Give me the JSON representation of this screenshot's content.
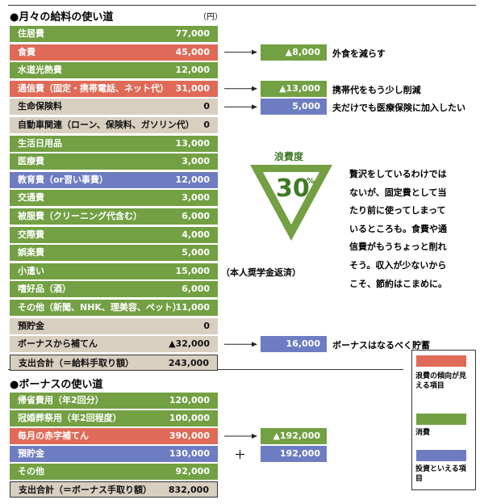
{
  "salary": {
    "title": "●月々の給料の使い道",
    "unit": "（円）",
    "rows": [
      {
        "label": "住居費",
        "amount": "77,000",
        "color": "#73a043"
      },
      {
        "label": "食費",
        "amount": "45,000",
        "color": "#df6a57",
        "change": "▲8,000",
        "change_color": "#73a043",
        "note": "外食を減らす"
      },
      {
        "label": "水道光熱費",
        "amount": "12,000",
        "color": "#73a043"
      },
      {
        "label": "通信費（固定・携帯電話、ネット代）",
        "amount": "31,000",
        "color": "#df6a57",
        "change": "▲13,000",
        "change_color": "#73a043",
        "note": "携帯代をもう少し削減"
      },
      {
        "label": "生命保険料",
        "amount": "0",
        "color": "#d8cfc0",
        "change": "5,000",
        "change_color": "#6e7cc2",
        "note": "夫だけでも医療保険に加入したい"
      },
      {
        "label": "自動車関連（ローン、保険料、ガソリン代）",
        "amount": "0",
        "color": "#d8cfc0"
      },
      {
        "label": "生活日用品",
        "amount": "13,000",
        "color": "#73a043"
      },
      {
        "label": "医療費",
        "amount": "3,000",
        "color": "#73a043"
      },
      {
        "label": "教育費（or習い事費）",
        "amount": "12,000",
        "color": "#6e7cc2"
      },
      {
        "label": "交通費",
        "amount": "3,000",
        "color": "#73a043"
      },
      {
        "label": "被服費（クリーニング代含む）",
        "amount": "6,000",
        "color": "#73a043"
      },
      {
        "label": "交際費",
        "amount": "4,000",
        "color": "#73a043"
      },
      {
        "label": "娯楽費",
        "amount": "5,000",
        "color": "#73a043"
      },
      {
        "label": "小遣い",
        "amount": "15,000",
        "color": "#73a043",
        "aside": "（本人奨学金返済）"
      },
      {
        "label": "嗜好品（酒）",
        "amount": "6,000",
        "color": "#73a043"
      },
      {
        "label": "その他（新聞、NHK、理美容、ペット）",
        "amount": "11,000",
        "color": "#73a043"
      },
      {
        "label": "預貯金",
        "amount": "0",
        "color": "#d8cfc0"
      },
      {
        "label": "ボーナスから補てん",
        "amount": "▲32,000",
        "color": "#d8cfc0",
        "change": "16,000",
        "change_color": "#6e7cc2",
        "note": "ボーナスはなるべく貯蓄"
      },
      {
        "label": "支出合計（＝給料手取り額）",
        "amount": "243,000",
        "color": "#d8cfc0",
        "total": true
      }
    ]
  },
  "bonus": {
    "title": "●ボーナスの使い道",
    "rows": [
      {
        "label": "帰省費用（年2回分）",
        "amount": "120,000",
        "color": "#73a043"
      },
      {
        "label": "冠婚葬祭用（年2回程度）",
        "amount": "100,000",
        "color": "#73a043"
      },
      {
        "label": "毎月の赤字補てん",
        "amount": "390,000",
        "color": "#df6a57",
        "change": "▲192,000",
        "change_color": "#73a043"
      },
      {
        "label": "預貯金",
        "amount": "130,000",
        "color": "#6e7cc2",
        "op": "＋",
        "change": "192,000",
        "change_color": "#6e7cc2"
      },
      {
        "label": "その他",
        "amount": "92,000",
        "color": "#73a043"
      },
      {
        "label": "支出合計（＝ボーナス手取り額）",
        "amount": "832,000",
        "color": "#d8cfc0",
        "total": true
      }
    ]
  },
  "waste": {
    "label": "浪費度",
    "value": "30",
    "unit": "%",
    "lines": [
      "贅沢をしているわけでは",
      "ないが、固定費として当",
      "たり前に使ってしまって",
      "いるところも。食費や通",
      "信費がもうちょっと削れ",
      "そう。収入が少ないから",
      "こそ、節約はこまめに。"
    ]
  },
  "legend": [
    {
      "label": "浪費の傾向が見える項目",
      "color": "#df6a57"
    },
    {
      "label": "消費",
      "color": "#73a043"
    },
    {
      "label": "投資といえる項目",
      "color": "#6e7cc2"
    }
  ]
}
